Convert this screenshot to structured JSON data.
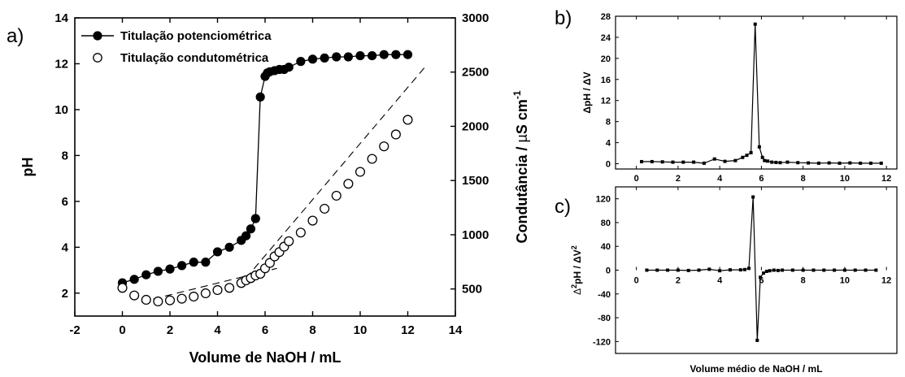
{
  "chart_data": [
    {
      "type": "scatter",
      "panel_label": "a)",
      "xlabel": "Volume de NaOH / mL",
      "ylabel": "pH",
      "y2label_main": "Condutância / ",
      "y2label_unit_mu": "µ",
      "y2label_unit_S": "S cm",
      "y2label_sup": "-1",
      "xlim": [
        -2,
        14
      ],
      "ylim": [
        1,
        14
      ],
      "y2lim": [
        250,
        3000
      ],
      "xticks": [
        -2,
        0,
        2,
        4,
        6,
        8,
        10,
        12,
        14
      ],
      "yticks": [
        2,
        4,
        6,
        8,
        10,
        12,
        14
      ],
      "y2ticks": [
        500,
        1000,
        1500,
        2000,
        2500,
        3000
      ],
      "legend_position": "top-left",
      "series": [
        {
          "name": "Titulação potenciométrica",
          "axis": "left",
          "marker": "filled-circle",
          "line": "solid",
          "x": [
            0,
            0.5,
            1,
            1.5,
            2,
            2.5,
            3,
            3.5,
            4,
            4.5,
            5,
            5.2,
            5.4,
            5.6,
            5.8,
            6,
            6.1,
            6.2,
            6.4,
            6.6,
            6.8,
            7,
            7.5,
            8,
            8.5,
            9,
            9.5,
            10,
            10.5,
            11,
            11.5,
            12
          ],
          "y": [
            2.45,
            2.6,
            2.8,
            2.95,
            3.05,
            3.2,
            3.35,
            3.35,
            3.8,
            4.0,
            4.3,
            4.5,
            4.8,
            5.25,
            10.55,
            11.45,
            11.6,
            11.65,
            11.7,
            11.75,
            11.75,
            11.85,
            12.1,
            12.2,
            12.25,
            12.3,
            12.3,
            12.35,
            12.35,
            12.4,
            12.4,
            12.4
          ]
        },
        {
          "name": "Titulação condutométrica",
          "axis": "right",
          "marker": "open-circle",
          "line": "none",
          "x": [
            0,
            0.5,
            1,
            1.5,
            2,
            2.5,
            3,
            3.5,
            4,
            4.5,
            5,
            5.2,
            5.4,
            5.6,
            5.8,
            6,
            6.2,
            6.4,
            6.6,
            6.8,
            7,
            7.5,
            8,
            8.5,
            9,
            9.5,
            10,
            10.5,
            11,
            11.5,
            12
          ],
          "y": [
            510,
            440,
            400,
            385,
            395,
            410,
            430,
            460,
            490,
            510,
            555,
            580,
            600,
            625,
            640,
            690,
            740,
            800,
            840,
            890,
            940,
            1020,
            1130,
            1240,
            1360,
            1470,
            1580,
            1700,
            1815,
            1925,
            2060
          ]
        }
      ],
      "guide_lines": [
        {
          "x": [
            0.8,
            6.5
          ],
          "y": [
            380,
            690
          ]
        },
        {
          "x": [
            5.2,
            12.7
          ],
          "y": [
            600,
            2540
          ]
        }
      ]
    },
    {
      "type": "line",
      "panel_label": "b)",
      "ylabel": "ΔpH / ΔV",
      "xlim": [
        -1,
        12.5
      ],
      "ylim": [
        -1,
        28
      ],
      "xticks": [
        0,
        2,
        4,
        6,
        8,
        10,
        12
      ],
      "yticks": [
        0,
        4,
        8,
        12,
        16,
        20,
        24,
        28
      ],
      "series": [
        {
          "x": [
            0.25,
            0.75,
            1.25,
            1.75,
            2.25,
            2.75,
            3.25,
            3.75,
            4.25,
            4.75,
            5.1,
            5.3,
            5.5,
            5.7,
            5.9,
            6.05,
            6.15,
            6.3,
            6.5,
            6.7,
            6.9,
            7.25,
            7.75,
            8.25,
            8.75,
            9.25,
            9.75,
            10.25,
            10.75,
            11.25,
            11.75
          ],
          "y": [
            0.4,
            0.4,
            0.35,
            0.3,
            0.3,
            0.3,
            0.1,
            0.9,
            0.45,
            0.6,
            1.2,
            1.6,
            2.1,
            26.5,
            3.2,
            1.2,
            0.6,
            0.5,
            0.3,
            0.25,
            0.2,
            0.3,
            0.2,
            0.15,
            0.1,
            0.15,
            0.1,
            0.15,
            0.1,
            0.1,
            0.1
          ]
        }
      ]
    },
    {
      "type": "line",
      "panel_label": "c)",
      "xlabel": "Volume médio de NaOH / mL",
      "ylabel_delta": "Δ",
      "ylabel_sup1": "2",
      "ylabel_mid": "pH / ΔV",
      "ylabel_sup2": "2",
      "xlim": [
        -1,
        12.5
      ],
      "ylim": [
        -140,
        140
      ],
      "xticks": [
        0,
        2,
        4,
        6,
        8,
        10,
        12
      ],
      "yticks": [
        -120,
        -80,
        -40,
        0,
        40,
        80,
        120
      ],
      "series": [
        {
          "x": [
            0.5,
            1,
            1.5,
            2,
            2.5,
            3,
            3.5,
            4,
            4.5,
            5,
            5.2,
            5.4,
            5.6,
            5.8,
            5.95,
            6.1,
            6.25,
            6.4,
            6.6,
            6.8,
            7,
            7.5,
            8,
            8.5,
            9,
            9.5,
            10,
            10.5,
            11,
            11.5
          ],
          "y": [
            0,
            0,
            0,
            0,
            -0.5,
            0,
            1.5,
            -1,
            0.5,
            0.5,
            1,
            3,
            123,
            -118,
            -12,
            -5,
            -2,
            -1,
            0,
            -0.5,
            0,
            0,
            0,
            0,
            0,
            0,
            0,
            0,
            0,
            0
          ]
        }
      ]
    }
  ]
}
